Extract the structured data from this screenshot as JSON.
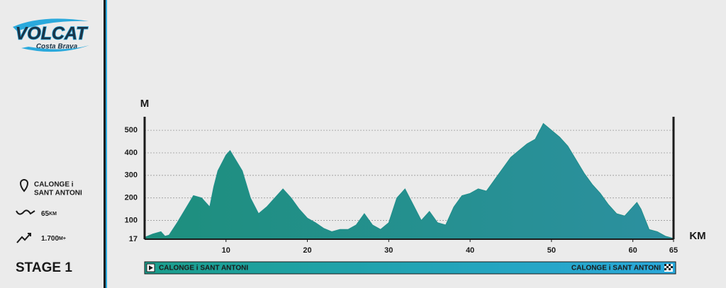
{
  "logo": {
    "title": "VOLCAT",
    "subtitle": "Costa Brava"
  },
  "stage_info": {
    "place_line1": "CALONGE i",
    "place_line2": "SANT ANTONI",
    "distance": 65,
    "distance_unit": "KM",
    "climb": "1.700",
    "climb_unit": "M+",
    "stage": "STAGE 1"
  },
  "chart_data": {
    "type": "area",
    "y_label": "M",
    "x_label": "KM",
    "color": "#1f8e8a",
    "x": [
      0,
      1,
      2,
      2.5,
      3,
      4,
      5,
      6,
      7,
      8,
      8.5,
      9,
      10,
      10.5,
      11,
      12,
      13,
      14,
      15,
      16,
      17,
      18,
      19,
      20,
      21,
      22,
      23,
      24,
      25,
      26,
      27,
      28,
      29,
      30,
      31,
      32,
      33,
      34,
      35,
      36,
      37,
      38,
      39,
      40,
      41,
      42,
      43,
      44,
      45,
      46,
      47,
      48,
      49,
      50,
      51,
      52,
      53,
      54,
      55,
      56,
      57,
      58,
      59,
      60,
      60.5,
      61,
      62,
      63,
      64,
      65
    ],
    "values": [
      25,
      40,
      50,
      30,
      35,
      90,
      150,
      210,
      200,
      160,
      250,
      320,
      390,
      410,
      380,
      320,
      200,
      130,
      160,
      200,
      240,
      200,
      150,
      110,
      90,
      65,
      50,
      60,
      60,
      80,
      130,
      80,
      60,
      90,
      200,
      240,
      170,
      100,
      140,
      90,
      80,
      160,
      210,
      220,
      240,
      230,
      280,
      330,
      380,
      410,
      440,
      460,
      530,
      500,
      470,
      430,
      370,
      310,
      260,
      220,
      170,
      130,
      120,
      160,
      180,
      150,
      60,
      50,
      30,
      20
    ],
    "xlim": [
      0,
      65
    ],
    "ylim": [
      17,
      560
    ],
    "xticks": [
      10,
      20,
      30,
      40,
      50,
      60,
      65
    ],
    "yticks": [
      17,
      100,
      200,
      300,
      400,
      500
    ],
    "grid": true,
    "start": "CALONGE i SANT ANTONI",
    "finish": "CALONGE i SANT ANTONI"
  }
}
